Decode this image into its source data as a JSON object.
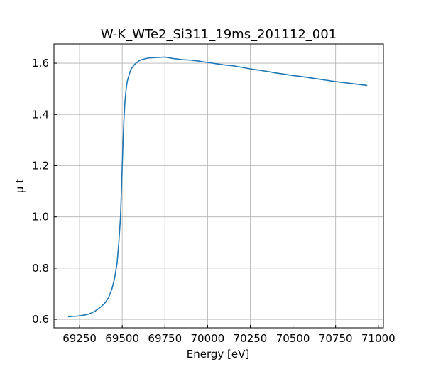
{
  "chart_data": {
    "type": "line",
    "title": "W-K_WTe2_Si311_19ms_201112_001",
    "xlabel": "Energy [eV]",
    "ylabel": "μ t",
    "xlim": [
      69100,
      71030
    ],
    "ylim": [
      0.567,
      1.675
    ],
    "xticks": [
      69250,
      69500,
      69750,
      70000,
      70250,
      70500,
      70750,
      71000
    ],
    "yticks": [
      0.6,
      0.8,
      1.0,
      1.2,
      1.4,
      1.6
    ],
    "grid": true,
    "colors": {
      "line": "#1f77b4"
    },
    "series": [
      {
        "name": "",
        "x": [
          69183,
          69200,
          69220,
          69240,
          69260,
          69280,
          69300,
          69320,
          69340,
          69360,
          69380,
          69400,
          69420,
          69440,
          69455,
          69470,
          69480,
          69490,
          69495,
          69500,
          69505,
          69510,
          69515,
          69520,
          69525,
          69530,
          69540,
          69550,
          69560,
          69570,
          69580,
          69600,
          69620,
          69650,
          69700,
          69750,
          69800,
          69850,
          69900,
          69950,
          70000,
          70050,
          70100,
          70150,
          70200,
          70250,
          70300,
          70350,
          70400,
          70450,
          70500,
          70550,
          70600,
          70650,
          70700,
          70750,
          70800,
          70850,
          70900,
          70935
        ],
        "y": [
          0.61,
          0.611,
          0.612,
          0.613,
          0.615,
          0.617,
          0.62,
          0.625,
          0.632,
          0.641,
          0.652,
          0.665,
          0.685,
          0.72,
          0.76,
          0.82,
          0.9,
          1.0,
          1.1,
          1.2,
          1.3,
          1.38,
          1.44,
          1.48,
          1.51,
          1.53,
          1.555,
          1.575,
          1.585,
          1.593,
          1.6,
          1.61,
          1.615,
          1.62,
          1.622,
          1.624,
          1.618,
          1.614,
          1.612,
          1.608,
          1.603,
          1.598,
          1.593,
          1.59,
          1.584,
          1.578,
          1.573,
          1.568,
          1.562,
          1.557,
          1.552,
          1.548,
          1.543,
          1.538,
          1.533,
          1.528,
          1.524,
          1.52,
          1.516,
          1.513
        ]
      }
    ]
  }
}
